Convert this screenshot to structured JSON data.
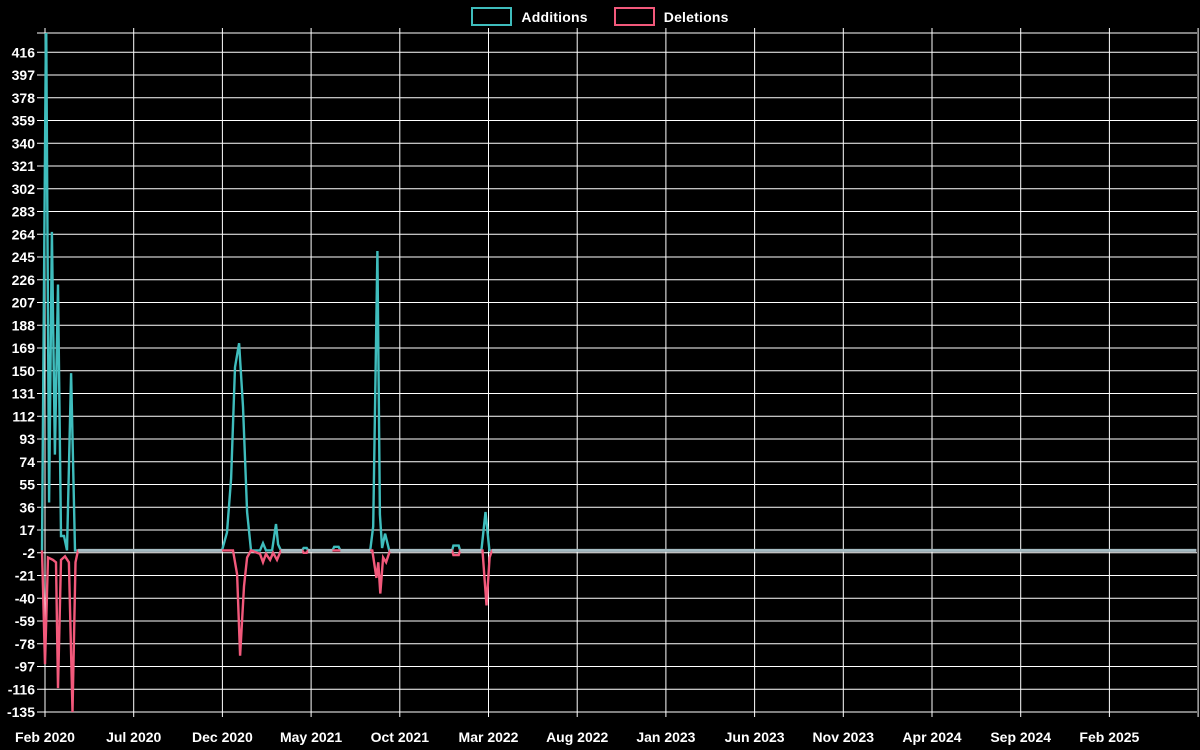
{
  "chart_data": {
    "type": "line",
    "title": "",
    "background_color": "#000000",
    "grid": true,
    "grid_color": "#ffffff",
    "text_color": "#ffffff",
    "baseline_overlap_color": "#a6bcc3",
    "legend_position": "top-center",
    "legend": [
      {
        "label": "Additions",
        "color": "#3fbdbd"
      },
      {
        "label": "Deletions",
        "color": "#f2597b"
      }
    ],
    "xlabel": "",
    "ylabel": "",
    "x_unit": "months since Feb 2020",
    "x_range": [
      -0.17,
      64.9
    ],
    "y_range": [
      -135,
      432
    ],
    "y_tick_step": 19,
    "months_per_x_tick": 5,
    "x_ticks": [
      "Feb 2020",
      "Jul 2020",
      "Dec 2020",
      "May 2021",
      "Oct 2021",
      "Mar 2022",
      "Aug 2022",
      "Jan 2023",
      "Jun 2023",
      "Nov 2023",
      "Apr 2024",
      "Sep 2024",
      "Feb 2025"
    ],
    "y_ticks": [
      416,
      397,
      378,
      359,
      340,
      321,
      302,
      283,
      264,
      245,
      226,
      207,
      188,
      169,
      150,
      131,
      112,
      93,
      74,
      55,
      36,
      17,
      -2,
      -21,
      -40,
      -59,
      -78,
      -97,
      -116,
      -135
    ],
    "note": "First Additions spike exceeds the y-axis maximum and is clipped at the plot top",
    "series": [
      {
        "name": "Additions",
        "color": "#3fbdbd",
        "points": [
          [
            -0.17,
            0
          ],
          [
            0.06,
            455
          ],
          [
            0.23,
            40
          ],
          [
            0.39,
            266
          ],
          [
            0.56,
            80
          ],
          [
            0.73,
            222
          ],
          [
            0.9,
            12
          ],
          [
            1.07,
            12
          ],
          [
            1.24,
            0
          ],
          [
            1.47,
            148
          ],
          [
            1.69,
            0
          ],
          [
            9.98,
            0
          ],
          [
            10.26,
            15
          ],
          [
            10.49,
            60
          ],
          [
            10.71,
            153
          ],
          [
            10.94,
            173
          ],
          [
            11.16,
            120
          ],
          [
            11.39,
            32
          ],
          [
            11.61,
            0
          ],
          [
            12.12,
            0
          ],
          [
            12.29,
            6
          ],
          [
            12.46,
            0
          ],
          [
            12.8,
            0
          ],
          [
            13.02,
            22
          ],
          [
            13.14,
            5
          ],
          [
            13.3,
            0
          ],
          [
            14.5,
            0
          ],
          [
            14.58,
            2
          ],
          [
            14.75,
            2
          ],
          [
            14.83,
            0
          ],
          [
            16.2,
            0
          ],
          [
            16.3,
            3
          ],
          [
            16.55,
            3
          ],
          [
            16.65,
            0
          ],
          [
            18.33,
            0
          ],
          [
            18.5,
            20
          ],
          [
            18.62,
            134
          ],
          [
            18.74,
            250
          ],
          [
            18.88,
            30
          ],
          [
            19.0,
            2
          ],
          [
            19.17,
            14
          ],
          [
            19.4,
            0
          ],
          [
            22.95,
            0
          ],
          [
            23.02,
            4
          ],
          [
            23.32,
            4
          ],
          [
            23.4,
            0
          ],
          [
            24.6,
            0
          ],
          [
            24.83,
            32
          ],
          [
            25.05,
            0
          ],
          [
            64.9,
            0
          ]
        ]
      },
      {
        "name": "Deletions",
        "color": "#f2597b",
        "points": [
          [
            -0.17,
            0
          ],
          [
            0.0,
            -95
          ],
          [
            0.17,
            -6
          ],
          [
            0.45,
            -8
          ],
          [
            0.62,
            -10
          ],
          [
            0.73,
            -115
          ],
          [
            0.9,
            -8
          ],
          [
            1.13,
            -5
          ],
          [
            1.35,
            -10
          ],
          [
            1.55,
            -135
          ],
          [
            1.72,
            -10
          ],
          [
            1.86,
            0
          ],
          [
            10.6,
            0
          ],
          [
            10.83,
            -20
          ],
          [
            11.0,
            -88
          ],
          [
            11.22,
            -30
          ],
          [
            11.39,
            -6
          ],
          [
            11.61,
            0
          ],
          [
            12.12,
            -3
          ],
          [
            12.29,
            -10
          ],
          [
            12.46,
            -3
          ],
          [
            12.69,
            -8
          ],
          [
            12.86,
            -2
          ],
          [
            13.08,
            -8
          ],
          [
            13.3,
            0
          ],
          [
            14.5,
            0
          ],
          [
            14.58,
            -2
          ],
          [
            14.75,
            -2
          ],
          [
            14.83,
            0
          ],
          [
            16.2,
            0
          ],
          [
            16.65,
            0
          ],
          [
            18.45,
            0
          ],
          [
            18.68,
            -23
          ],
          [
            18.79,
            -10
          ],
          [
            18.9,
            -36
          ],
          [
            19.06,
            -6
          ],
          [
            19.23,
            -10
          ],
          [
            19.45,
            0
          ],
          [
            22.95,
            0
          ],
          [
            23.02,
            -4
          ],
          [
            23.32,
            -4
          ],
          [
            23.4,
            0
          ],
          [
            24.66,
            0
          ],
          [
            24.89,
            -46
          ],
          [
            25.06,
            -6
          ],
          [
            25.2,
            0
          ],
          [
            64.9,
            0
          ]
        ]
      }
    ]
  }
}
